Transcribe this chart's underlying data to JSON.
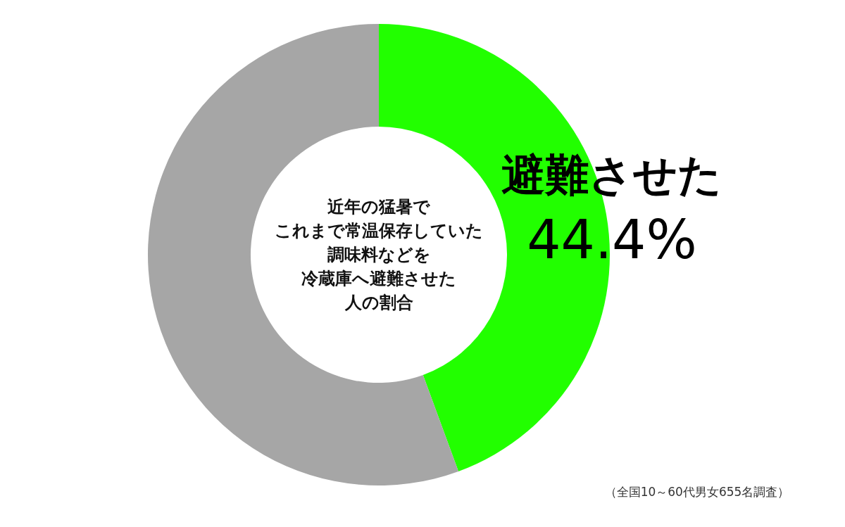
{
  "chart_data": {
    "type": "donut",
    "title": "近年の猛暑でこれまで常温保存していた調味料などを冷蔵庫へ避難させた人の割合",
    "categories": [
      "避難させた",
      null
    ],
    "values": [
      44.4,
      55.6
    ],
    "colors": [
      "#22ff00",
      "#a6a6a6"
    ],
    "value_labels": [
      "44.4%",
      null
    ],
    "annotations": [
      "（全国10～60代男女655名調査）"
    ]
  }
}
